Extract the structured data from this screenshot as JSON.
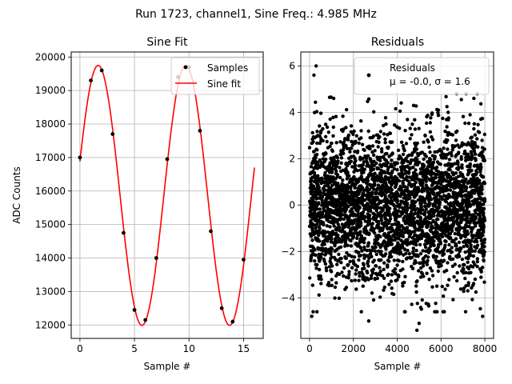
{
  "suptitle": "Run 1723, channel1, Sine Freq.: 4.985 MHz",
  "chart_data": [
    {
      "type": "line",
      "title": "Sine Fit",
      "xlabel": "Sample #",
      "ylabel": "ADC Counts",
      "xlim": [
        -0.8,
        16.8
      ],
      "ylim": [
        11600,
        20150
      ],
      "xticks": [
        0,
        5,
        10,
        15
      ],
      "yticks": [
        12000,
        13000,
        14000,
        15000,
        16000,
        17000,
        18000,
        19000,
        20000
      ],
      "grid": true,
      "legend": {
        "placement": "top-right",
        "entries": [
          "Samples",
          "Sine fit"
        ]
      },
      "series": [
        {
          "name": "Samples",
          "kind": "scatter",
          "color": "#000000",
          "x": [
            0,
            1,
            2,
            3,
            4,
            5,
            6,
            7,
            8,
            9,
            10,
            11,
            12,
            13,
            14,
            15
          ],
          "y": [
            17000,
            19300,
            19600,
            17700,
            14750,
            12450,
            12150,
            14000,
            16950,
            19400,
            19700,
            17800,
            14800,
            12500,
            12100,
            13950
          ]
        },
        {
          "name": "Sine fit",
          "kind": "line",
          "color": "#ff0000",
          "model": {
            "offset": 15870,
            "amplitude": 3880,
            "period": 8.03,
            "phase_rad": 0.263
          },
          "x_range": [
            0,
            16
          ]
        }
      ]
    },
    {
      "type": "scatter",
      "title": "Residuals",
      "xlabel": "Sample #",
      "ylabel": "",
      "xlim": [
        -400,
        8400
      ],
      "ylim": [
        -5.75,
        6.6
      ],
      "xticks": [
        0,
        2000,
        4000,
        6000,
        8000
      ],
      "yticks": [
        -4,
        -2,
        0,
        2,
        4,
        6
      ],
      "grid": true,
      "legend": {
        "placement": "top-right",
        "entries": [
          "Residuals",
          "μ = -0.0, σ = 1.6"
        ]
      },
      "series": [
        {
          "name": "Residuals",
          "color": "#000000",
          "points": 8000,
          "mean": 0.0,
          "std": 1.6,
          "outliers": [
            [
              300,
              6.0
            ],
            [
              200,
              5.6
            ],
            [
              4900,
              -5.4
            ],
            [
              5000,
              -5.1
            ],
            [
              2700,
              -5.0
            ],
            [
              100,
              -4.8
            ],
            [
              7900,
              -4.8
            ],
            [
              1100,
              4.6
            ],
            [
              7500,
              4.6
            ]
          ]
        }
      ]
    }
  ]
}
